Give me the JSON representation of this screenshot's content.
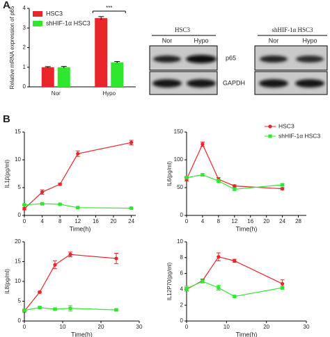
{
  "panel_labels": [
    "A",
    "B"
  ],
  "blots": {
    "groups": [
      {
        "title": "HSC3",
        "lanes": [
          "Nor",
          "Hypo"
        ]
      },
      {
        "title": "shHIF-1α HSC3",
        "lanes": [
          "Nor",
          "Hypo"
        ]
      }
    ],
    "rows": [
      "p65",
      "GAPDH"
    ]
  },
  "chart_data": [
    {
      "type": "bar",
      "y_label": "Relative mRNA expression of p65",
      "categories": [
        "Nor",
        "Hypo"
      ],
      "series": [
        {
          "name": "HSC3",
          "color": "#e8262a",
          "values": [
            1,
            3.5
          ],
          "errors": [
            0.03,
            0.08
          ]
        },
        {
          "name": "shHIF-1α HSC3",
          "color": "#2ee82e",
          "values": [
            1,
            1.25
          ],
          "errors": [
            0.04,
            0.04
          ]
        }
      ],
      "ylim": [
        0,
        4
      ],
      "yticks": [
        0,
        1,
        2,
        3,
        4
      ],
      "annotation": "***",
      "legend": true
    },
    {
      "type": "line",
      "y_label": "IL1β(pg/ml)",
      "x_label": "Time(h)",
      "x": [
        0,
        4,
        8,
        12,
        24
      ],
      "series": [
        {
          "name": "HSC3",
          "color": "#e8262a",
          "values": [
            1.2,
            4.2,
            5.6,
            11.1,
            13.1
          ],
          "errors": [
            0.2,
            0.4,
            0.2,
            0.5,
            0.4
          ]
        },
        {
          "name": "shHIF-1α HSC3",
          "color": "#2ee82e",
          "values": [
            1.9,
            2.1,
            2.0,
            1.4,
            1.3
          ],
          "errors": [
            0.1,
            0.1,
            0.1,
            0.1,
            0.1
          ]
        }
      ],
      "xlim": [
        0,
        25
      ],
      "xticks": [
        0,
        4,
        8,
        12,
        16,
        20,
        24
      ],
      "ylim": [
        0,
        15
      ],
      "yticks": [
        0,
        5,
        10,
        15
      ],
      "legend": false
    },
    {
      "type": "line",
      "y_label": "IL6(pg/ml)",
      "x_label": "Time(h)",
      "x": [
        0,
        4,
        8,
        12,
        24
      ],
      "series": [
        {
          "name": "HSC3",
          "color": "#e8262a",
          "values": [
            65,
            128,
            65,
            53,
            48
          ],
          "errors": [
            3,
            4,
            3,
            2,
            2
          ]
        },
        {
          "name": "shHIF-1α HSC3",
          "color": "#2ee82e",
          "values": [
            68,
            73,
            62,
            47,
            55
          ],
          "errors": [
            2,
            2,
            3,
            2,
            2
          ]
        }
      ],
      "xlim": [
        0,
        30
      ],
      "xticks": [
        0,
        4,
        8,
        12,
        16,
        20,
        24,
        28
      ],
      "ylim": [
        0,
        150
      ],
      "yticks": [
        0,
        50,
        100,
        150
      ],
      "legend": true
    },
    {
      "type": "line",
      "y_label": "IL8(pg/ml)",
      "x_label": "Time(h)",
      "x": [
        0,
        4,
        8,
        12,
        24
      ],
      "series": [
        {
          "name": "HSC3",
          "color": "#e8262a",
          "values": [
            2.5,
            7.3,
            14.2,
            16.8,
            15.8
          ],
          "errors": [
            0.2,
            0.2,
            1.0,
            0.6,
            1.3
          ]
        },
        {
          "name": "shHIF-1α HSC3",
          "color": "#2ee82e",
          "values": [
            2.7,
            3.4,
            3.0,
            3.2,
            2.8
          ],
          "errors": [
            0.2,
            0.2,
            0.2,
            0.7,
            0.2
          ]
        }
      ],
      "xlim": [
        0,
        30
      ],
      "xticks": [
        0,
        10,
        20,
        30
      ],
      "ylim": [
        0,
        20
      ],
      "yticks": [
        0,
        5,
        10,
        15,
        20
      ],
      "legend": false
    },
    {
      "type": "line",
      "y_label": "IL12P70(pg/ml)",
      "x_label": "Time(h)",
      "x": [
        0,
        4,
        8,
        12,
        24
      ],
      "series": [
        {
          "name": "HSC3",
          "color": "#e8262a",
          "values": [
            4.0,
            5.1,
            8.1,
            7.6,
            4.7
          ],
          "errors": [
            0.2,
            0.2,
            0.5,
            0.2,
            0.5
          ]
        },
        {
          "name": "shHIF-1α HSC3",
          "color": "#2ee82e",
          "values": [
            4.1,
            5.0,
            4.2,
            3.1,
            4.2
          ],
          "errors": [
            0.3,
            0.2,
            0.3,
            0.1,
            0.2
          ]
        }
      ],
      "xlim": [
        0,
        30
      ],
      "xticks": [
        0,
        10,
        20,
        30
      ],
      "ylim": [
        0,
        10
      ],
      "yticks": [
        0,
        2,
        4,
        6,
        8,
        10
      ],
      "legend": false
    }
  ]
}
